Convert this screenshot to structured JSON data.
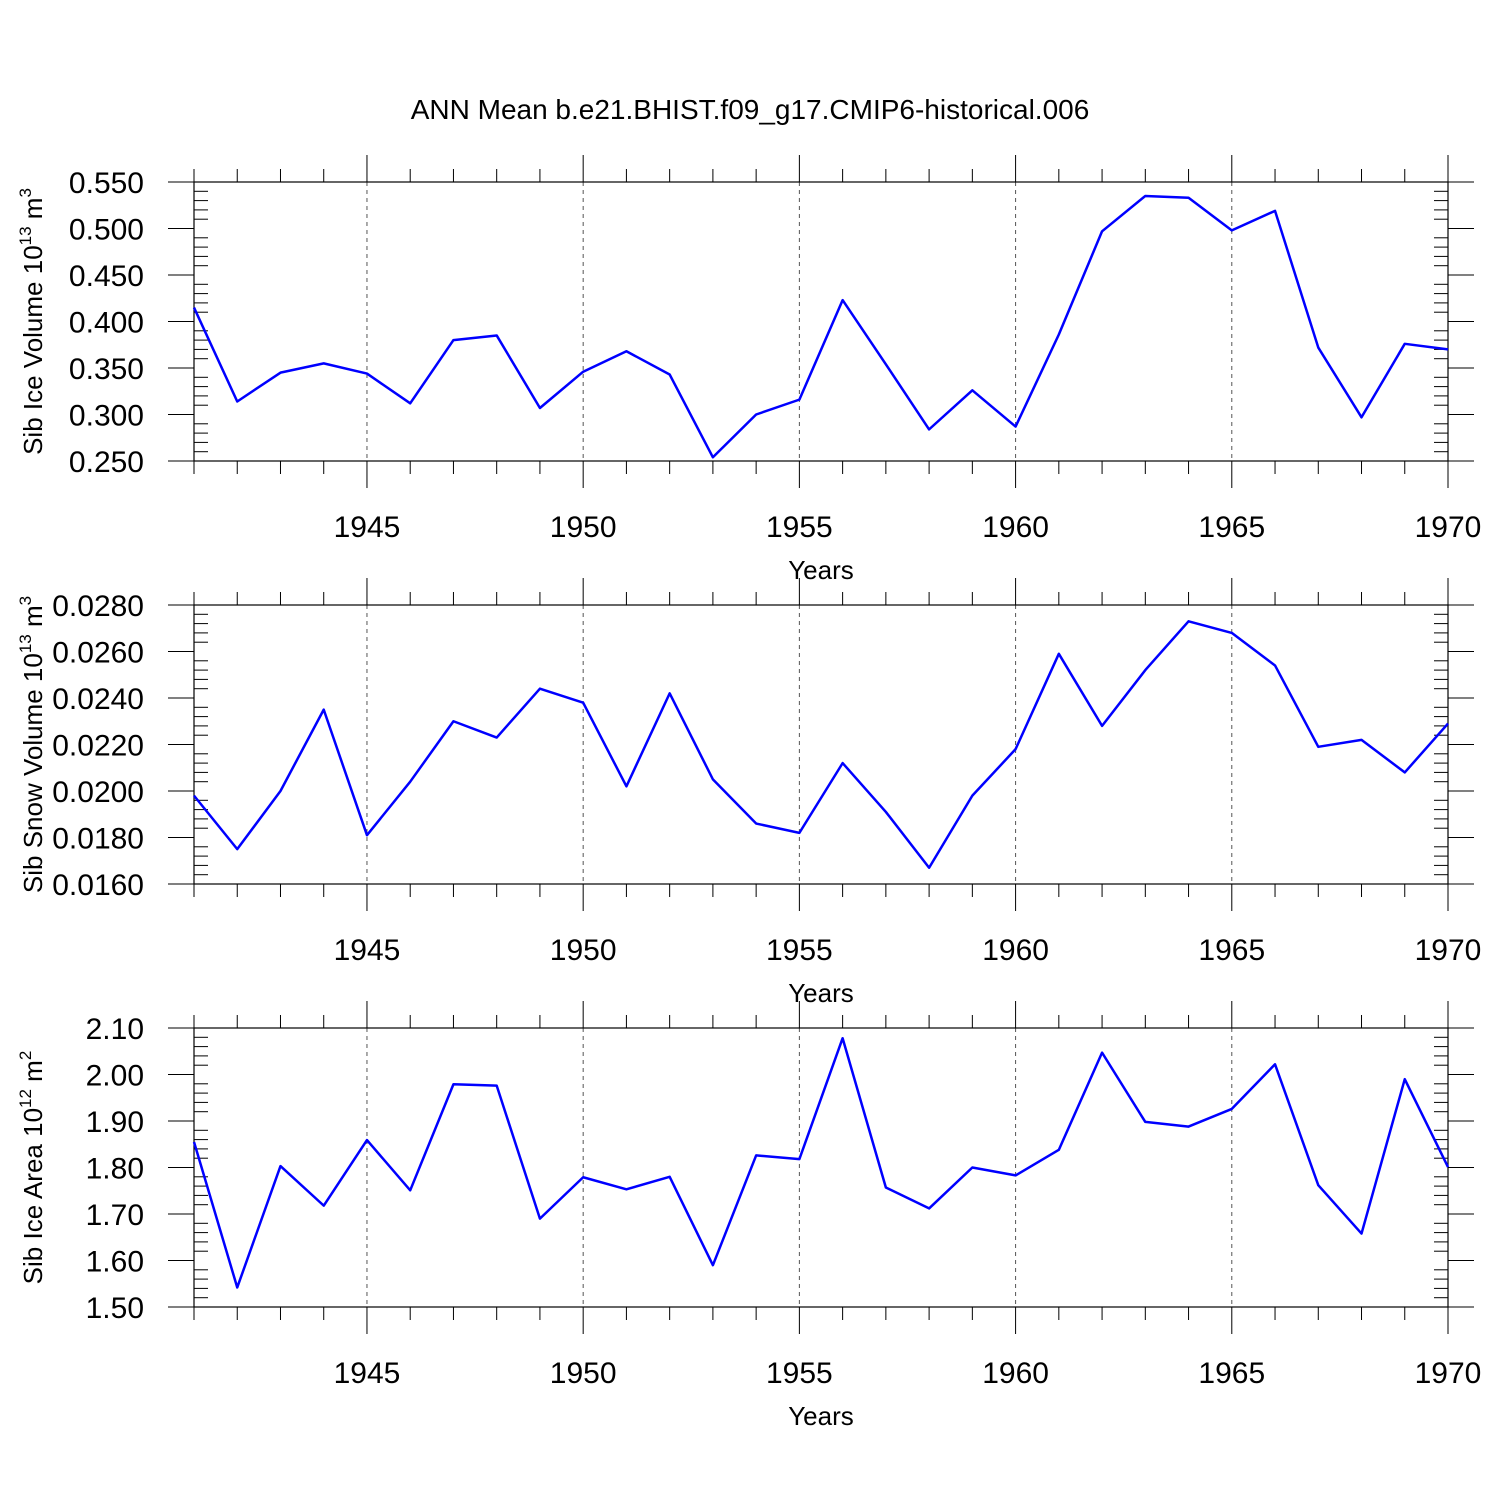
{
  "figure": {
    "title": "ANN Mean b.e21.BHIST.f09_g17.CMIP6-historical.006",
    "line_color": "#0000ff",
    "grid_color": "#555555"
  },
  "chart_data": [
    {
      "type": "line",
      "ylabel_main": "Sib Ice Volume 10",
      "ylabel_exp": "13",
      "ylabel_unit": " m",
      "ylabel_unit_exp": "3",
      "xlabel": "Years",
      "xlim": [
        1941,
        1970
      ],
      "ylim": [
        0.25,
        0.55
      ],
      "yticks": [
        "0.250",
        "0.300",
        "0.350",
        "0.400",
        "0.450",
        "0.500",
        "0.550"
      ],
      "xticks": [
        "1945",
        "1950",
        "1955",
        "1960",
        "1965",
        "1970"
      ],
      "grid": "vertical dashed at major x ticks",
      "x": [
        1941,
        1942,
        1943,
        1944,
        1945,
        1946,
        1947,
        1948,
        1949,
        1950,
        1951,
        1952,
        1953,
        1954,
        1955,
        1956,
        1957,
        1958,
        1959,
        1960,
        1961,
        1962,
        1963,
        1964,
        1965,
        1966,
        1967,
        1968,
        1969,
        1970
      ],
      "series": [
        {
          "values": [
            0.415,
            0.314,
            0.345,
            0.355,
            0.344,
            0.312,
            0.38,
            0.385,
            0.307,
            0.346,
            0.368,
            0.343,
            0.254,
            0.3,
            0.316,
            0.423,
            0.354,
            0.284,
            0.326,
            0.287,
            0.386,
            0.497,
            0.535,
            0.533,
            0.498,
            0.519,
            0.372,
            0.297,
            0.376,
            0.37
          ]
        }
      ]
    },
    {
      "type": "line",
      "ylabel_main": "Sib Snow Volume 10",
      "ylabel_exp": "13",
      "ylabel_unit": " m",
      "ylabel_unit_exp": "3",
      "xlabel": "Years",
      "xlim": [
        1941,
        1970
      ],
      "ylim": [
        0.016,
        0.028
      ],
      "yticks": [
        "0.0160",
        "0.0180",
        "0.0200",
        "0.0220",
        "0.0240",
        "0.0260",
        "0.0280"
      ],
      "xticks": [
        "1945",
        "1950",
        "1955",
        "1960",
        "1965",
        "1970"
      ],
      "grid": "vertical dashed at major x ticks",
      "x": [
        1941,
        1942,
        1943,
        1944,
        1945,
        1946,
        1947,
        1948,
        1949,
        1950,
        1951,
        1952,
        1953,
        1954,
        1955,
        1956,
        1957,
        1958,
        1959,
        1960,
        1961,
        1962,
        1963,
        1964,
        1965,
        1966,
        1967,
        1968,
        1969,
        1970
      ],
      "series": [
        {
          "values": [
            0.0198,
            0.0175,
            0.02,
            0.0235,
            0.0181,
            0.0204,
            0.023,
            0.0223,
            0.0244,
            0.0238,
            0.0202,
            0.0242,
            0.0205,
            0.0186,
            0.0182,
            0.0212,
            0.0191,
            0.0167,
            0.0198,
            0.0218,
            0.0259,
            0.0228,
            0.0252,
            0.0273,
            0.0268,
            0.0254,
            0.0219,
            0.0222,
            0.0208,
            0.0229
          ]
        }
      ]
    },
    {
      "type": "line",
      "ylabel_main": "Sib Ice Area 10",
      "ylabel_exp": "12",
      "ylabel_unit": " m",
      "ylabel_unit_exp": "2",
      "xlabel": "Years",
      "xlim": [
        1941,
        1970
      ],
      "ylim": [
        1.5,
        2.1
      ],
      "yticks": [
        "1.50",
        "1.60",
        "1.70",
        "1.80",
        "1.90",
        "2.00",
        "2.10"
      ],
      "xticks": [
        "1945",
        "1950",
        "1955",
        "1960",
        "1965",
        "1970"
      ],
      "grid": "vertical dashed at major x ticks",
      "x": [
        1941,
        1942,
        1943,
        1944,
        1945,
        1946,
        1947,
        1948,
        1949,
        1950,
        1951,
        1952,
        1953,
        1954,
        1955,
        1956,
        1957,
        1958,
        1959,
        1960,
        1961,
        1962,
        1963,
        1964,
        1965,
        1966,
        1967,
        1968,
        1969,
        1970
      ],
      "series": [
        {
          "values": [
            1.855,
            1.542,
            1.803,
            1.718,
            1.859,
            1.751,
            1.979,
            1.976,
            1.69,
            1.779,
            1.753,
            1.78,
            1.59,
            1.826,
            1.818,
            2.078,
            1.757,
            1.712,
            1.8,
            1.783,
            1.838,
            2.047,
            1.898,
            1.888,
            1.926,
            2.022,
            1.762,
            1.658,
            1.99,
            1.801
          ]
        }
      ]
    }
  ]
}
